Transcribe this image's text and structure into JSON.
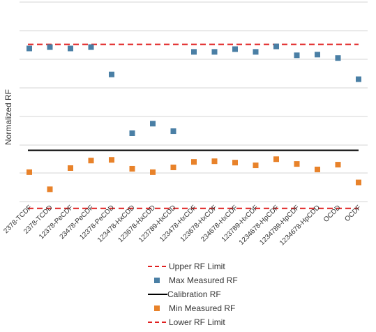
{
  "chart_data": {
    "type": "scatter",
    "ylabel": "Normalized RF",
    "xlabel": "",
    "categories": [
      "2378-TCDF",
      "2378-TCDD",
      "12378-PeCDF",
      "23478-PeCDF",
      "12378-PeCDD",
      "123478-HxCDD",
      "123678-HxCDD",
      "123789-HxCDD",
      "123478-HxCDF",
      "123678-HxCDF",
      "234678-HxCDF",
      "123789-HxCDF",
      "1234678-HpCDF",
      "1234789-HpCDF",
      "1234678-HpCDD",
      "OCDD",
      "OCDF"
    ],
    "ylim": [
      0,
      2.5
    ],
    "grid": true,
    "legend_position": "bottom",
    "series": [
      {
        "name": "Max Measured RF",
        "marker": "square",
        "color": "#4a7fa5",
        "values": [
          2.24,
          2.26,
          2.24,
          2.26,
          1.86,
          1.0,
          1.14,
          1.03,
          2.19,
          2.19,
          2.23,
          2.19,
          2.27,
          2.14,
          2.15,
          2.1,
          1.79
        ]
      },
      {
        "name": "Min Measured RF",
        "marker": "square",
        "color": "#e8822a",
        "values": [
          0.43,
          0.18,
          0.49,
          0.6,
          0.61,
          0.48,
          0.43,
          0.5,
          0.58,
          0.59,
          0.57,
          0.53,
          0.62,
          0.55,
          0.47,
          0.54,
          0.28
        ]
      },
      {
        "name": "Upper RF Limit",
        "line": "dashed",
        "color": "#e02020",
        "value": 2.3
      },
      {
        "name": "Calibration RF",
        "line": "solid",
        "color": "#000000",
        "value": 0.75
      },
      {
        "name": "Lower RF Limit",
        "line": "dashed",
        "color": "#e02020",
        "value": -0.1
      }
    ]
  },
  "legend": {
    "items": [
      {
        "label": "Upper RF Limit",
        "symbol": "dashed-line",
        "color": "#e02020"
      },
      {
        "label": "Max Measured RF",
        "symbol": "square",
        "color": "#4a7fa5"
      },
      {
        "label": "Calibration RF",
        "symbol": "solid-line",
        "color": "#000000"
      },
      {
        "label": "Min Measured RF",
        "symbol": "square",
        "color": "#e8822a"
      },
      {
        "label": "Lower RF Limit",
        "symbol": "dashed-line",
        "color": "#e02020"
      }
    ]
  }
}
